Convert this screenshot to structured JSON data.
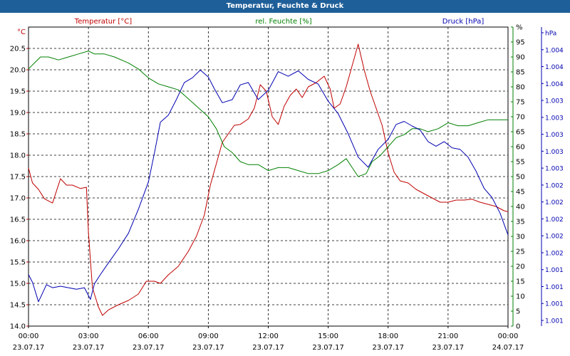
{
  "chart_data": {
    "type": "line",
    "title": "Temperatur, Feuchte & Druck",
    "x": [
      "00:00",
      "03:00",
      "06:00",
      "09:00",
      "12:00",
      "15:00",
      "18:00",
      "21:00",
      "00:00"
    ],
    "x_dates": [
      "23.07.17",
      "23.07.17",
      "23.07.17",
      "23.07.17",
      "23.07.17",
      "23.07.17",
      "23.07.17",
      "23.07.17",
      "24.07.17"
    ],
    "x_range": [
      0,
      24
    ],
    "grid": true,
    "axes": {
      "temperature": {
        "label": "Temperatur [°C]",
        "unit": "°C",
        "color": "#c00000",
        "range": [
          14,
          21
        ],
        "ticks": [
          "14.0",
          "14.5",
          "15.0",
          "15.5",
          "16.0",
          "16.5",
          "17.0",
          "17.5",
          "18.0",
          "18.5",
          "19.0",
          "19.5",
          "20.0",
          "20.5"
        ]
      },
      "humidity": {
        "label": "rel. Feuchte [%]",
        "unit": "%",
        "color": "#008000",
        "range": [
          0,
          100
        ],
        "ticks": [
          "0",
          "5",
          "10",
          "15",
          "20",
          "25",
          "30",
          "35",
          "40",
          "45",
          "50",
          "55",
          "60",
          "65",
          "70",
          "75",
          "80",
          "85",
          "90",
          "95",
          "%"
        ]
      },
      "pressure": {
        "label": "Druck [hPa]",
        "unit": "hPa",
        "color": "#0000b0",
        "range": [
          1.0006,
          1.0043
        ],
        "ticks": [
          "1.001",
          "1.001",
          "1.001",
          "1.001",
          "1.002",
          "1.002",
          "1.002",
          "1.002",
          "1.002",
          "1.003",
          "1.003",
          "1.003",
          "1.003",
          "1.003",
          "1.004",
          "1.004",
          "1.004",
          "hPa"
        ]
      }
    },
    "series": [
      {
        "name": "Temperatur [°C]",
        "axis": "temperature",
        "color": "#c00000",
        "points": [
          [
            0,
            17.7
          ],
          [
            0.2,
            17.35
          ],
          [
            0.5,
            17.2
          ],
          [
            0.8,
            16.98
          ],
          [
            1.2,
            16.88
          ],
          [
            1.6,
            17.45
          ],
          [
            1.9,
            17.3
          ],
          [
            2.2,
            17.3
          ],
          [
            2.6,
            17.22
          ],
          [
            2.9,
            17.25
          ],
          [
            3.0,
            16.2
          ],
          [
            3.2,
            14.9
          ],
          [
            3.5,
            14.45
          ],
          [
            3.7,
            14.25
          ],
          [
            4.0,
            14.38
          ],
          [
            4.5,
            14.5
          ],
          [
            5.0,
            14.6
          ],
          [
            5.5,
            14.75
          ],
          [
            5.9,
            15.05
          ],
          [
            6.3,
            15.05
          ],
          [
            6.6,
            15.0
          ],
          [
            7.0,
            15.2
          ],
          [
            7.5,
            15.4
          ],
          [
            8.0,
            15.75
          ],
          [
            8.4,
            16.1
          ],
          [
            8.8,
            16.6
          ],
          [
            9.1,
            17.3
          ],
          [
            9.4,
            17.8
          ],
          [
            9.7,
            18.3
          ],
          [
            10.0,
            18.5
          ],
          [
            10.3,
            18.7
          ],
          [
            10.6,
            18.72
          ],
          [
            11.0,
            18.85
          ],
          [
            11.3,
            19.1
          ],
          [
            11.6,
            19.65
          ],
          [
            11.9,
            19.5
          ],
          [
            12.2,
            18.9
          ],
          [
            12.5,
            18.72
          ],
          [
            12.8,
            19.15
          ],
          [
            13.1,
            19.4
          ],
          [
            13.4,
            19.55
          ],
          [
            13.7,
            19.35
          ],
          [
            14.0,
            19.6
          ],
          [
            14.4,
            19.7
          ],
          [
            14.8,
            19.85
          ],
          [
            15.1,
            19.55
          ],
          [
            15.3,
            19.1
          ],
          [
            15.6,
            19.2
          ],
          [
            15.9,
            19.6
          ],
          [
            16.2,
            20.1
          ],
          [
            16.5,
            20.6
          ],
          [
            16.8,
            20.0
          ],
          [
            17.1,
            19.5
          ],
          [
            17.4,
            19.1
          ],
          [
            17.7,
            18.7
          ],
          [
            18.0,
            18.05
          ],
          [
            18.3,
            17.6
          ],
          [
            18.6,
            17.4
          ],
          [
            19.0,
            17.35
          ],
          [
            19.4,
            17.2
          ],
          [
            19.8,
            17.1
          ],
          [
            20.2,
            17.0
          ],
          [
            20.6,
            16.9
          ],
          [
            21.0,
            16.9
          ],
          [
            21.4,
            16.95
          ],
          [
            21.8,
            16.95
          ],
          [
            22.2,
            16.97
          ],
          [
            22.6,
            16.9
          ],
          [
            23.0,
            16.85
          ],
          [
            23.4,
            16.8
          ],
          [
            23.8,
            16.7
          ],
          [
            24.0,
            16.68
          ]
        ]
      },
      {
        "name": "rel. Feuchte [%]",
        "axis": "humidity",
        "color": "#008000",
        "points": [
          [
            0,
            86
          ],
          [
            0.3,
            88
          ],
          [
            0.6,
            90
          ],
          [
            1.0,
            90
          ],
          [
            1.5,
            89
          ],
          [
            2.0,
            90
          ],
          [
            2.5,
            91
          ],
          [
            3.0,
            92
          ],
          [
            3.3,
            91
          ],
          [
            3.8,
            91
          ],
          [
            4.3,
            90
          ],
          [
            5.0,
            88
          ],
          [
            5.5,
            86
          ],
          [
            6.0,
            83
          ],
          [
            6.5,
            81
          ],
          [
            7.0,
            80
          ],
          [
            7.5,
            79
          ],
          [
            8.0,
            76
          ],
          [
            8.5,
            73
          ],
          [
            9.0,
            70
          ],
          [
            9.4,
            66
          ],
          [
            9.8,
            60
          ],
          [
            10.2,
            58
          ],
          [
            10.6,
            55
          ],
          [
            11.0,
            54
          ],
          [
            11.5,
            54
          ],
          [
            12.0,
            52
          ],
          [
            12.5,
            53
          ],
          [
            13.0,
            53
          ],
          [
            13.5,
            52
          ],
          [
            14.0,
            51
          ],
          [
            14.5,
            51
          ],
          [
            15.0,
            52
          ],
          [
            15.5,
            54
          ],
          [
            15.9,
            56
          ],
          [
            16.2,
            53
          ],
          [
            16.5,
            50
          ],
          [
            16.9,
            51
          ],
          [
            17.2,
            55
          ],
          [
            17.6,
            57
          ],
          [
            18.0,
            60
          ],
          [
            18.4,
            63
          ],
          [
            18.8,
            64
          ],
          [
            19.2,
            66
          ],
          [
            19.6,
            66
          ],
          [
            20.0,
            65
          ],
          [
            20.5,
            66
          ],
          [
            21.0,
            68
          ],
          [
            21.5,
            67
          ],
          [
            22.0,
            67
          ],
          [
            22.5,
            68
          ],
          [
            23.0,
            69
          ],
          [
            23.5,
            69
          ],
          [
            24.0,
            69
          ]
        ]
      },
      {
        "name": "Druck [hPa]",
        "axis": "pressure",
        "color": "#0000b0",
        "points": [
          [
            0,
            1.00119
          ],
          [
            0.2,
            1.00109
          ],
          [
            0.5,
            1.00084
          ],
          [
            0.9,
            1.00106
          ],
          [
            1.2,
            1.00102
          ],
          [
            1.6,
            1.00104
          ],
          [
            2.0,
            1.00102
          ],
          [
            2.4,
            1.001
          ],
          [
            2.8,
            1.00102
          ],
          [
            3.1,
            1.00087
          ],
          [
            3.3,
            1.00107
          ],
          [
            3.6,
            1.00119
          ],
          [
            4.0,
            1.00134
          ],
          [
            4.5,
            1.00152
          ],
          [
            5.0,
            1.00172
          ],
          [
            5.5,
            1.00203
          ],
          [
            6.0,
            1.00238
          ],
          [
            6.3,
            1.00275
          ],
          [
            6.6,
            1.00315
          ],
          [
            7.0,
            1.00324
          ],
          [
            7.4,
            1.00344
          ],
          [
            7.8,
            1.00366
          ],
          [
            8.2,
            1.00372
          ],
          [
            8.6,
            1.00382
          ],
          [
            9.0,
            1.00373
          ],
          [
            9.3,
            1.00358
          ],
          [
            9.7,
            1.0034
          ],
          [
            10.2,
            1.00344
          ],
          [
            10.6,
            1.00363
          ],
          [
            11.0,
            1.00366
          ],
          [
            11.5,
            1.00344
          ],
          [
            12.0,
            1.00356
          ],
          [
            12.5,
            1.0038
          ],
          [
            13.0,
            1.00374
          ],
          [
            13.5,
            1.00381
          ],
          [
            14.0,
            1.0037
          ],
          [
            14.5,
            1.00364
          ],
          [
            15.0,
            1.00342
          ],
          [
            15.5,
            1.00326
          ],
          [
            16.0,
            1.003
          ],
          [
            16.5,
            1.0027
          ],
          [
            17.0,
            1.00257
          ],
          [
            17.5,
            1.0028
          ],
          [
            18.0,
            1.00293
          ],
          [
            18.4,
            1.00312
          ],
          [
            18.8,
            1.00316
          ],
          [
            19.2,
            1.0031
          ],
          [
            19.6,
            1.00305
          ],
          [
            20.0,
            1.0029
          ],
          [
            20.4,
            1.00284
          ],
          [
            20.8,
            1.0029
          ],
          [
            21.2,
            1.00282
          ],
          [
            21.6,
            1.0028
          ],
          [
            22.0,
            1.0027
          ],
          [
            22.4,
            1.00252
          ],
          [
            22.8,
            1.0023
          ],
          [
            23.2,
            1.00218
          ],
          [
            23.6,
            1.00198
          ],
          [
            24.0,
            1.0017
          ]
        ]
      }
    ]
  }
}
